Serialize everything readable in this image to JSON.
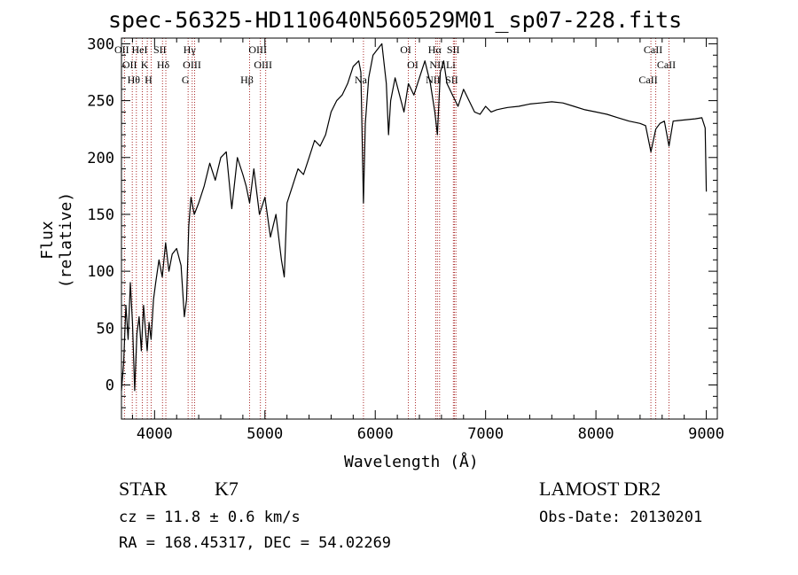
{
  "chart_data": {
    "type": "line",
    "title": "spec-56325-HD110640N560529M01_sp07-228.fits",
    "xlabel": "Wavelength (Å)",
    "ylabel": "Flux (relative)",
    "xlim": [
      3700,
      9100
    ],
    "ylim": [
      -30,
      305
    ],
    "xticks": [
      4000,
      5000,
      6000,
      7000,
      8000,
      9000
    ],
    "yticks": [
      0,
      50,
      100,
      150,
      200,
      250,
      300
    ],
    "grid": false,
    "series": [
      {
        "x": [
          3700,
          3720,
          3740,
          3760,
          3780,
          3800,
          3820,
          3840,
          3860,
          3880,
          3900,
          3920,
          3933,
          3950,
          3968,
          3990,
          4010,
          4040,
          4070,
          4100,
          4130,
          4160,
          4200,
          4240,
          4270,
          4290,
          4310,
          4330,
          4360,
          4400,
          4450,
          4500,
          4550,
          4600,
          4650,
          4700,
          4750,
          4800,
          4830,
          4861,
          4900,
          4950,
          5000,
          5050,
          5100,
          5150,
          5175,
          5200,
          5250,
          5300,
          5350,
          5400,
          5450,
          5500,
          5550,
          5600,
          5650,
          5700,
          5750,
          5800,
          5850,
          5870,
          5893,
          5910,
          5940,
          5980,
          6020,
          6060,
          6100,
          6120,
          6140,
          6180,
          6220,
          6260,
          6300,
          6350,
          6400,
          6450,
          6500,
          6540,
          6563,
          6590,
          6620,
          6650,
          6700,
          6750,
          6800,
          6850,
          6900,
          6950,
          7000,
          7050,
          7100,
          7150,
          7200,
          7300,
          7400,
          7500,
          7600,
          7700,
          7800,
          7900,
          8000,
          8100,
          8200,
          8300,
          8400,
          8450,
          8498,
          8542,
          8580,
          8620,
          8662,
          8700,
          8800,
          8900,
          8960,
          8990,
          9000
        ],
        "y": [
          -5,
          20,
          70,
          40,
          90,
          55,
          -5,
          45,
          60,
          30,
          70,
          45,
          30,
          55,
          40,
          75,
          90,
          110,
          95,
          125,
          100,
          115,
          120,
          105,
          60,
          75,
          140,
          165,
          150,
          160,
          175,
          195,
          180,
          200,
          205,
          155,
          200,
          185,
          175,
          160,
          190,
          150,
          165,
          130,
          150,
          110,
          95,
          160,
          175,
          190,
          185,
          200,
          215,
          210,
          220,
          240,
          250,
          255,
          265,
          280,
          285,
          275,
          160,
          230,
          270,
          290,
          295,
          300,
          265,
          220,
          250,
          270,
          255,
          240,
          265,
          255,
          270,
          285,
          265,
          240,
          220,
          275,
          285,
          265,
          255,
          245,
          260,
          250,
          240,
          238,
          245,
          240,
          242,
          243,
          244,
          245,
          247,
          248,
          249,
          248,
          245,
          242,
          240,
          238,
          235,
          232,
          230,
          228,
          205,
          225,
          230,
          232,
          210,
          232,
          233,
          234,
          235,
          226,
          170
        ]
      }
    ],
    "line_markers": [
      {
        "wave": 3727,
        "label": "OII"
      },
      {
        "wave": 3798,
        "label": "OII"
      },
      {
        "wave": 3835,
        "label": "Hθ"
      },
      {
        "wave": 3889,
        "label": "HeI"
      },
      {
        "wave": 3934,
        "label": "K"
      },
      {
        "wave": 3969,
        "label": "H"
      },
      {
        "wave": 4072,
        "label": "SII"
      },
      {
        "wave": 4102,
        "label": "Hδ"
      },
      {
        "wave": 4304,
        "label": "G"
      },
      {
        "wave": 4341,
        "label": "Hγ"
      },
      {
        "wave": 4363,
        "label": "OIII"
      },
      {
        "wave": 4861,
        "label": "Hβ"
      },
      {
        "wave": 4959,
        "label": "OIII"
      },
      {
        "wave": 5007,
        "label": "OIII"
      },
      {
        "wave": 5893,
        "label": "Na"
      },
      {
        "wave": 6300,
        "label": "OI"
      },
      {
        "wave": 6364,
        "label": "OI"
      },
      {
        "wave": 6548,
        "label": "NII"
      },
      {
        "wave": 6563,
        "label": "Hα"
      },
      {
        "wave": 6583,
        "label": "NII"
      },
      {
        "wave": 6717,
        "label": "SII"
      },
      {
        "wave": 6731,
        "label": "SII"
      },
      {
        "wave": 6708,
        "label": "Li"
      },
      {
        "wave": 8498,
        "label": "CaII"
      },
      {
        "wave": 8542,
        "label": "CaII"
      },
      {
        "wave": 8662,
        "label": "CaII"
      }
    ],
    "marker_color": "#aa2a2a",
    "line_color": "#000000"
  },
  "info": {
    "class": "STAR",
    "subclass": "K7",
    "cz": "cz = 11.8 ± 0.6 km/s",
    "radec": "RA = 168.45317, DEC =  54.02269",
    "survey": "LAMOST DR2",
    "obsdate": "Obs-Date: 20130201"
  }
}
